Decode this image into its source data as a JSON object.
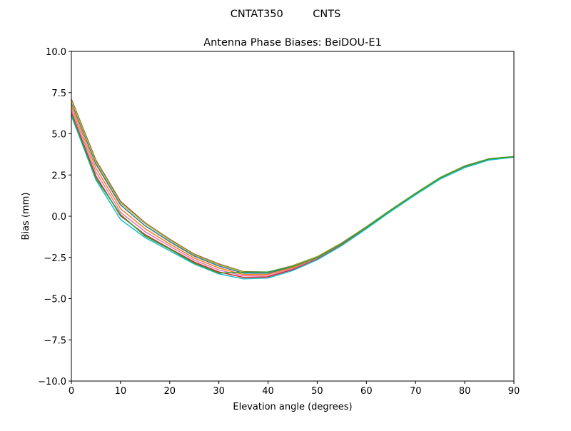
{
  "chart_data": {
    "type": "line",
    "suptitle": "CNTAT350         CNTS",
    "title": "Antenna Phase Biases: BeiDOU-E1",
    "xlabel": "Elevation angle (degrees)",
    "ylabel": "Bias (mm)",
    "xlim": [
      0,
      90
    ],
    "ylim": [
      -10,
      10
    ],
    "xticks": [
      0,
      10,
      20,
      30,
      40,
      50,
      60,
      70,
      80,
      90
    ],
    "xtick_labels": [
      "0",
      "10",
      "20",
      "30",
      "40",
      "50",
      "60",
      "70",
      "80",
      "90"
    ],
    "yticks": [
      -10,
      -7.5,
      -5,
      -2.5,
      0,
      2.5,
      5,
      7.5,
      10
    ],
    "ytick_labels": [
      "−10.0",
      "−7.5",
      "−5.0",
      "−2.5",
      "0.0",
      "2.5",
      "5.0",
      "7.5",
      "10.0"
    ],
    "grid": false,
    "x": [
      0,
      5,
      10,
      15,
      20,
      25,
      30,
      35,
      40,
      45,
      50,
      55,
      60,
      65,
      70,
      75,
      80,
      85,
      90
    ],
    "series": [
      {
        "color": "#8c564b",
        "values": [
          7.1,
          3.4,
          0.9,
          -0.4,
          -1.4,
          -2.3,
          -2.9,
          -3.36,
          -3.39,
          -3.0,
          -2.45,
          -1.62,
          -0.64,
          0.4,
          1.4,
          2.35,
          3.05,
          3.49,
          3.62
        ]
      },
      {
        "color": "#1f77b4",
        "values": [
          6.9,
          3.16,
          0.68,
          -0.58,
          -1.54,
          -2.42,
          -3.02,
          -3.45,
          -3.46,
          -3.06,
          -2.49,
          -1.65,
          -0.66,
          0.38,
          1.38,
          2.33,
          3.03,
          3.47,
          3.61
        ]
      },
      {
        "color": "#ff7f0e",
        "values": [
          6.7,
          2.92,
          0.46,
          -0.76,
          -1.68,
          -2.54,
          -3.14,
          -3.54,
          -3.53,
          -3.12,
          -2.53,
          -1.68,
          -0.69,
          0.36,
          1.36,
          2.31,
          3.01,
          3.46,
          3.6
        ]
      },
      {
        "color": "#e377c2",
        "values": [
          6.5,
          2.68,
          0.24,
          -0.94,
          -1.82,
          -2.66,
          -3.26,
          -3.62,
          -3.61,
          -3.18,
          -2.57,
          -1.72,
          -0.71,
          0.34,
          1.34,
          2.29,
          2.99,
          3.44,
          3.6
        ]
      },
      {
        "color": "#d62728",
        "values": [
          6.3,
          2.44,
          0.02,
          -1.12,
          -1.96,
          -2.78,
          -3.38,
          -3.71,
          -3.68,
          -3.24,
          -2.61,
          -1.75,
          -0.74,
          0.32,
          1.32,
          2.27,
          2.97,
          3.43,
          3.59
        ]
      },
      {
        "color": "#17becf",
        "values": [
          6.1,
          2.2,
          -0.2,
          -1.3,
          -2.1,
          -2.9,
          -3.5,
          -3.8,
          -3.75,
          -3.3,
          -2.65,
          -1.78,
          -0.76,
          0.3,
          1.3,
          2.25,
          2.95,
          3.41,
          3.58
        ]
      },
      {
        "color": "#bcbd22",
        "values": [
          7.0,
          3.3,
          0.8,
          -0.45,
          -1.45,
          -2.35,
          -2.95,
          -3.38,
          -3.4,
          -3.02,
          -2.46,
          -1.63,
          -0.65,
          0.39,
          1.39,
          2.34,
          3.04,
          3.48,
          3.61
        ]
      },
      {
        "color": "#2ca02c",
        "values": [
          6.2,
          2.3,
          0.1,
          -1.2,
          -2.0,
          -2.85,
          -3.45,
          -3.4,
          -3.38,
          -3.05,
          -2.5,
          -1.66,
          -0.67,
          0.37,
          1.37,
          2.32,
          3.02,
          3.47,
          3.61
        ]
      }
    ]
  }
}
